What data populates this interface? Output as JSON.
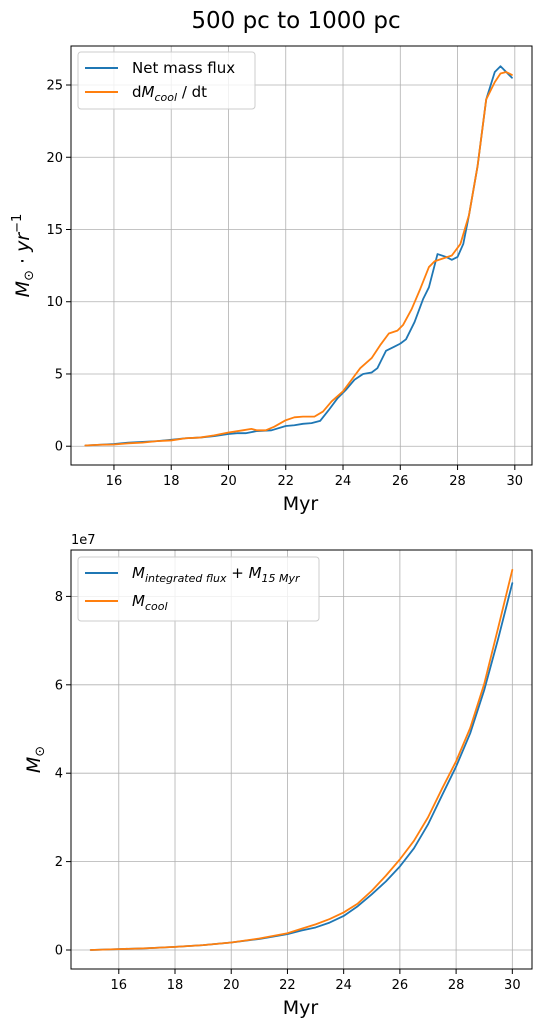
{
  "figure_title": "500 pc to 1000 pc",
  "colors": {
    "series1": "#1f77b4",
    "series2": "#ff7f0e"
  },
  "chart_data": [
    {
      "type": "line",
      "title": "500 pc to 1000 pc",
      "xlabel": "Myr",
      "ylabel_tex": {
        "base": "M",
        "sub": "⊙",
        "mid": " · yr",
        "sup": "−1"
      },
      "xlim": [
        14.5,
        30.6
      ],
      "ylim": [
        -1.3,
        27.7
      ],
      "xticks": [
        16,
        18,
        20,
        22,
        24,
        26,
        28,
        30
      ],
      "yticks": [
        0,
        5,
        10,
        15,
        20,
        25
      ],
      "grid": true,
      "legend_position": "top-left",
      "series": [
        {
          "name": "Net mass flux",
          "legend": {
            "pre": "Net mass flux",
            "sub": "",
            "post": ""
          },
          "color": "#1f77b4",
          "x": [
            15,
            15.5,
            16,
            16.5,
            17,
            17.5,
            18,
            18.5,
            19,
            19.5,
            20,
            20.3,
            20.6,
            21,
            21.5,
            22,
            22.3,
            22.6,
            22.9,
            23.2,
            23.5,
            23.8,
            24.1,
            24.4,
            24.7,
            25,
            25.2,
            25.5,
            25.8,
            26,
            26.2,
            26.5,
            26.8,
            27,
            27.3,
            27.6,
            27.8,
            28,
            28.2,
            28.4,
            28.7,
            29,
            29.3,
            29.5,
            29.7,
            29.9
          ],
          "y": [
            0.05,
            0.1,
            0.15,
            0.25,
            0.3,
            0.35,
            0.45,
            0.55,
            0.6,
            0.7,
            0.85,
            0.9,
            0.9,
            1.05,
            1.1,
            1.4,
            1.45,
            1.55,
            1.6,
            1.75,
            2.5,
            3.3,
            3.9,
            4.6,
            5.0,
            5.1,
            5.4,
            6.6,
            6.9,
            7.1,
            7.4,
            8.6,
            10.2,
            11.0,
            13.3,
            13.1,
            12.9,
            13.1,
            14.0,
            16.0,
            19.4,
            24.0,
            25.9,
            26.3,
            25.9,
            25.5
          ]
        },
        {
          "name": "dM_cool / dt",
          "legend": {
            "pre": "dM",
            "sub": "cool",
            "post": " / dt"
          },
          "color": "#ff7f0e",
          "x": [
            15,
            15.5,
            16,
            16.5,
            17,
            17.5,
            18,
            18.5,
            19,
            19.5,
            20,
            20.5,
            20.8,
            21,
            21.3,
            21.6,
            22,
            22.3,
            22.6,
            23,
            23.3,
            23.6,
            24,
            24.3,
            24.6,
            25,
            25.3,
            25.6,
            25.9,
            26.1,
            26.4,
            26.7,
            27,
            27.2,
            27.5,
            27.8,
            28.1,
            28.4,
            28.7,
            29,
            29.3,
            29.5,
            29.7,
            29.9
          ],
          "y": [
            0.05,
            0.1,
            0.12,
            0.2,
            0.25,
            0.35,
            0.4,
            0.55,
            0.6,
            0.75,
            0.95,
            1.1,
            1.2,
            1.1,
            1.1,
            1.35,
            1.8,
            2.0,
            2.05,
            2.05,
            2.4,
            3.1,
            3.8,
            4.6,
            5.4,
            6.1,
            7.0,
            7.8,
            8.0,
            8.4,
            9.5,
            10.9,
            12.4,
            12.8,
            13.0,
            13.2,
            14.0,
            16.0,
            19.4,
            24.0,
            25.2,
            25.8,
            25.9,
            25.7
          ]
        }
      ]
    },
    {
      "type": "line",
      "title": "",
      "xlabel": "Myr",
      "ylabel_tex": {
        "base": "M",
        "sub": "⊙",
        "mid": "",
        "sup": ""
      },
      "offset_text": "1e7",
      "xlim": [
        14.3,
        30.7
      ],
      "ylim": [
        -0.43,
        9.05
      ],
      "xticks": [
        16,
        18,
        20,
        22,
        24,
        26,
        28,
        30
      ],
      "yticks": [
        0,
        2,
        4,
        6,
        8
      ],
      "grid": true,
      "legend_position": "top-left",
      "series": [
        {
          "name": "M_integrated flux + M_15 Myr",
          "legend": {
            "pre": "M",
            "sub": "integrated flux",
            "post": " + M",
            "sub2": "15 Myr"
          },
          "color": "#1f77b4",
          "x": [
            15,
            16,
            17,
            18,
            19,
            20,
            21,
            22,
            22.5,
            23,
            23.5,
            24,
            24.5,
            25,
            25.5,
            26,
            26.5,
            27,
            27.5,
            28,
            28.5,
            29,
            29.5,
            30
          ],
          "y": [
            0.0,
            0.02,
            0.04,
            0.07,
            0.11,
            0.17,
            0.25,
            0.36,
            0.44,
            0.51,
            0.62,
            0.77,
            0.99,
            1.26,
            1.55,
            1.89,
            2.3,
            2.84,
            3.5,
            4.15,
            4.9,
            5.88,
            7.05,
            8.3
          ]
        },
        {
          "name": "M_cool",
          "legend": {
            "pre": "M",
            "sub": "cool",
            "post": ""
          },
          "color": "#ff7f0e",
          "x": [
            15,
            16,
            17,
            18,
            19,
            20,
            21,
            22,
            22.5,
            23,
            23.5,
            24,
            24.5,
            25,
            25.5,
            26,
            26.5,
            27,
            27.5,
            28,
            28.5,
            29,
            29.5,
            30
          ],
          "y": [
            0.0,
            0.02,
            0.04,
            0.07,
            0.11,
            0.17,
            0.26,
            0.38,
            0.48,
            0.58,
            0.7,
            0.85,
            1.05,
            1.34,
            1.68,
            2.05,
            2.47,
            3.0,
            3.65,
            4.27,
            5.02,
            6.02,
            7.3,
            8.6
          ]
        }
      ]
    }
  ]
}
